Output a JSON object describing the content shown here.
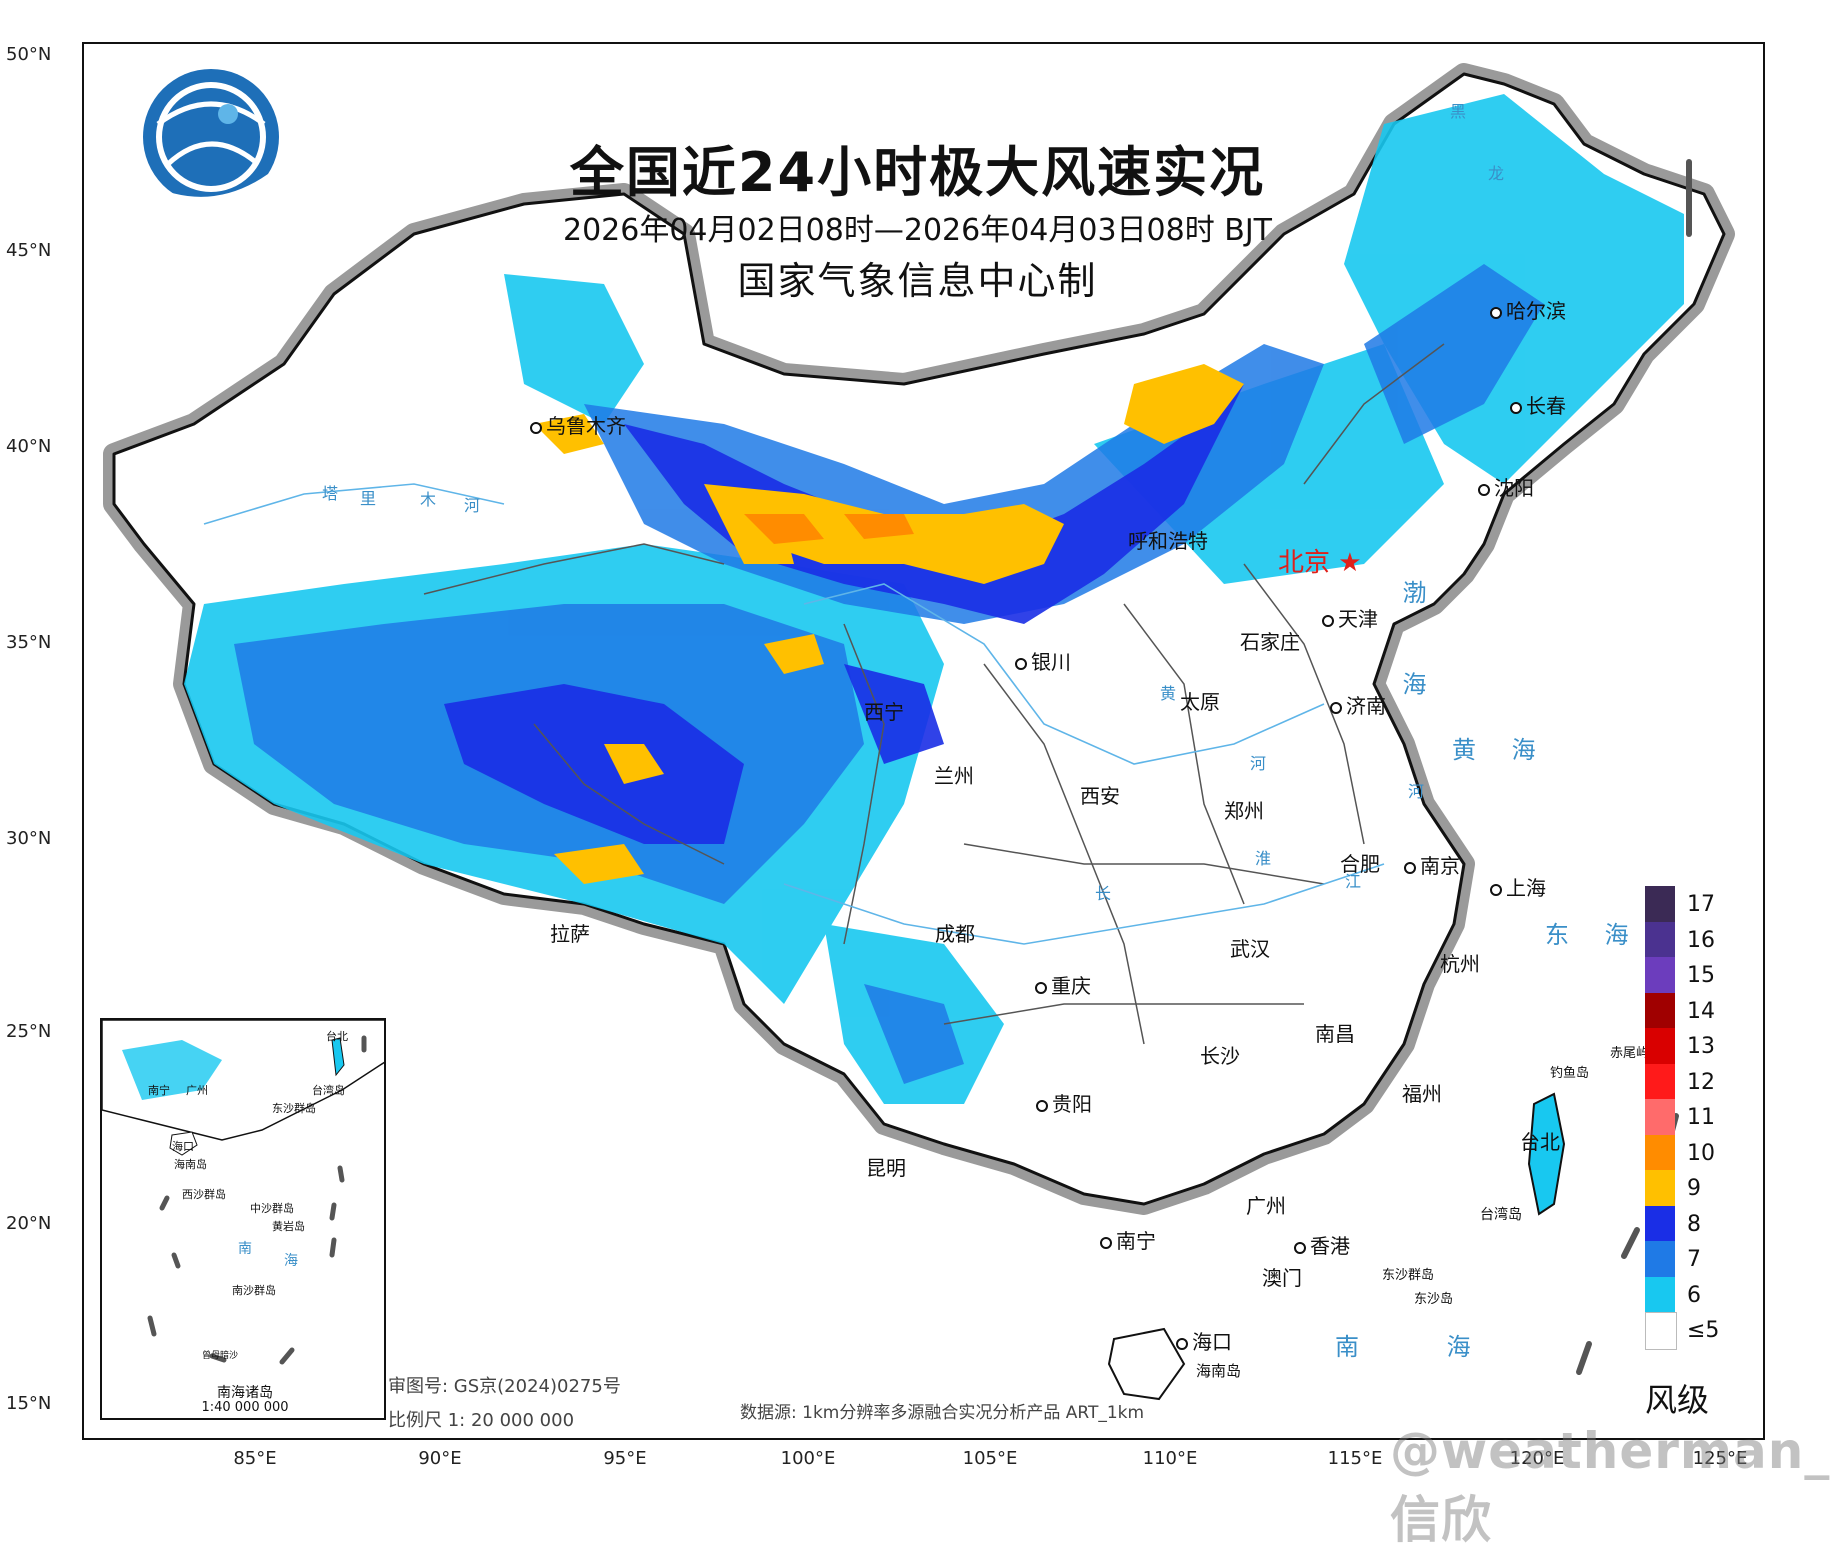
{
  "title": "全国近24小时极大风速实况",
  "subtitle": "2026年04月02日08时—2026年04月03日08时 BJT",
  "producer": "国家气象信息中心制",
  "lat_labels": [
    "50°N",
    "45°N",
    "40°N",
    "35°N",
    "30°N",
    "25°N",
    "20°N",
    "15°N"
  ],
  "lon_labels": [
    "85°E",
    "90°E",
    "95°E",
    "100°E",
    "105°E",
    "110°E",
    "115°E",
    "120°E",
    "125°E"
  ],
  "cities": {
    "urumqi": "乌鲁木齐",
    "harbin": "哈尔滨",
    "changchun": "长春",
    "shenyang": "沈阳",
    "hohhot": "呼和浩特",
    "beijing": "北京",
    "tianjin": "天津",
    "shijiazhuang": "石家庄",
    "yinchuan": "银川",
    "taiyuan": "太原",
    "jinan": "济南",
    "xining": "西宁",
    "lanzhou": "兰州",
    "xian": "西安",
    "zhengzhou": "郑州",
    "hefei": "合肥",
    "nanjing": "南京",
    "shanghai": "上海",
    "lhasa": "拉萨",
    "chengdu": "成都",
    "wuhan": "武汉",
    "hangzhou": "杭州",
    "chongqing": "重庆",
    "nanchang": "南昌",
    "changsha": "长沙",
    "fuzhou": "福州",
    "guiyang": "贵阳",
    "kunming": "昆明",
    "taipei": "台北",
    "guangzhou": "广州",
    "nanning": "南宁",
    "hongkong": "香港",
    "macau": "澳门",
    "haikou": "海口",
    "hainan_island": "海南岛",
    "taiwan_island": "台湾岛",
    "diaoyu": "钓鱼岛",
    "chiwei": "赤尾屿",
    "dongsha_islands": "东沙群岛",
    "dongsha_island": "东沙岛"
  },
  "seas": {
    "bohai": "渤 海",
    "yellow_sea": "黄 海",
    "east_sea": "东 海",
    "south_sea": "南 海"
  },
  "rivers": {
    "tarim": [
      "塔",
      "里",
      "木",
      "河"
    ],
    "heilong": [
      "黑",
      "龙"
    ],
    "yellow_river": [
      "黄",
      "河"
    ],
    "huai": "淮",
    "changjiang": [
      "长",
      "江"
    ],
    "huai_he": "河"
  },
  "legend": {
    "title": "风级",
    "items": [
      {
        "label": "17",
        "color": "#3b2a55"
      },
      {
        "label": "16",
        "color": "#4b3290"
      },
      {
        "label": "15",
        "color": "#6c3dbd"
      },
      {
        "label": "14",
        "color": "#a00000"
      },
      {
        "label": "13",
        "color": "#d90000"
      },
      {
        "label": "12",
        "color": "#ff1a1a"
      },
      {
        "label": "11",
        "color": "#ff6b6b"
      },
      {
        "label": "10",
        "color": "#ff8c00"
      },
      {
        "label": "9",
        "color": "#ffc000"
      },
      {
        "label": "8",
        "color": "#1a2ee6"
      },
      {
        "label": "7",
        "color": "#1f7ae6"
      },
      {
        "label": "6",
        "color": "#18c8f0"
      },
      {
        "label": "≤5",
        "color": "#ffffff"
      }
    ]
  },
  "inset": {
    "title": "南海诸岛",
    "scale": "1:40 000 000",
    "labels": {
      "nanning": "南宁",
      "guangzhou": "广州",
      "taipei": "台北",
      "taiwan": "台湾岛",
      "dongsha": "东沙群岛",
      "haikou": "海口",
      "hainan": "海南岛",
      "xisha": "西沙群岛",
      "zhongsha": "中沙群岛",
      "huangyan": "黄岩岛",
      "nan": "南",
      "hai": "海",
      "nansha": "南沙群岛",
      "zengmu": "曾母暗沙"
    }
  },
  "review_no": "审图号: GS京(2024)0275号",
  "scale_text": "比例尺 1: 20 000 000",
  "data_source": "数据源: 1km分辨率多源融合实况分析产品 ART_1km",
  "watermark": "@weatherman_信欣"
}
